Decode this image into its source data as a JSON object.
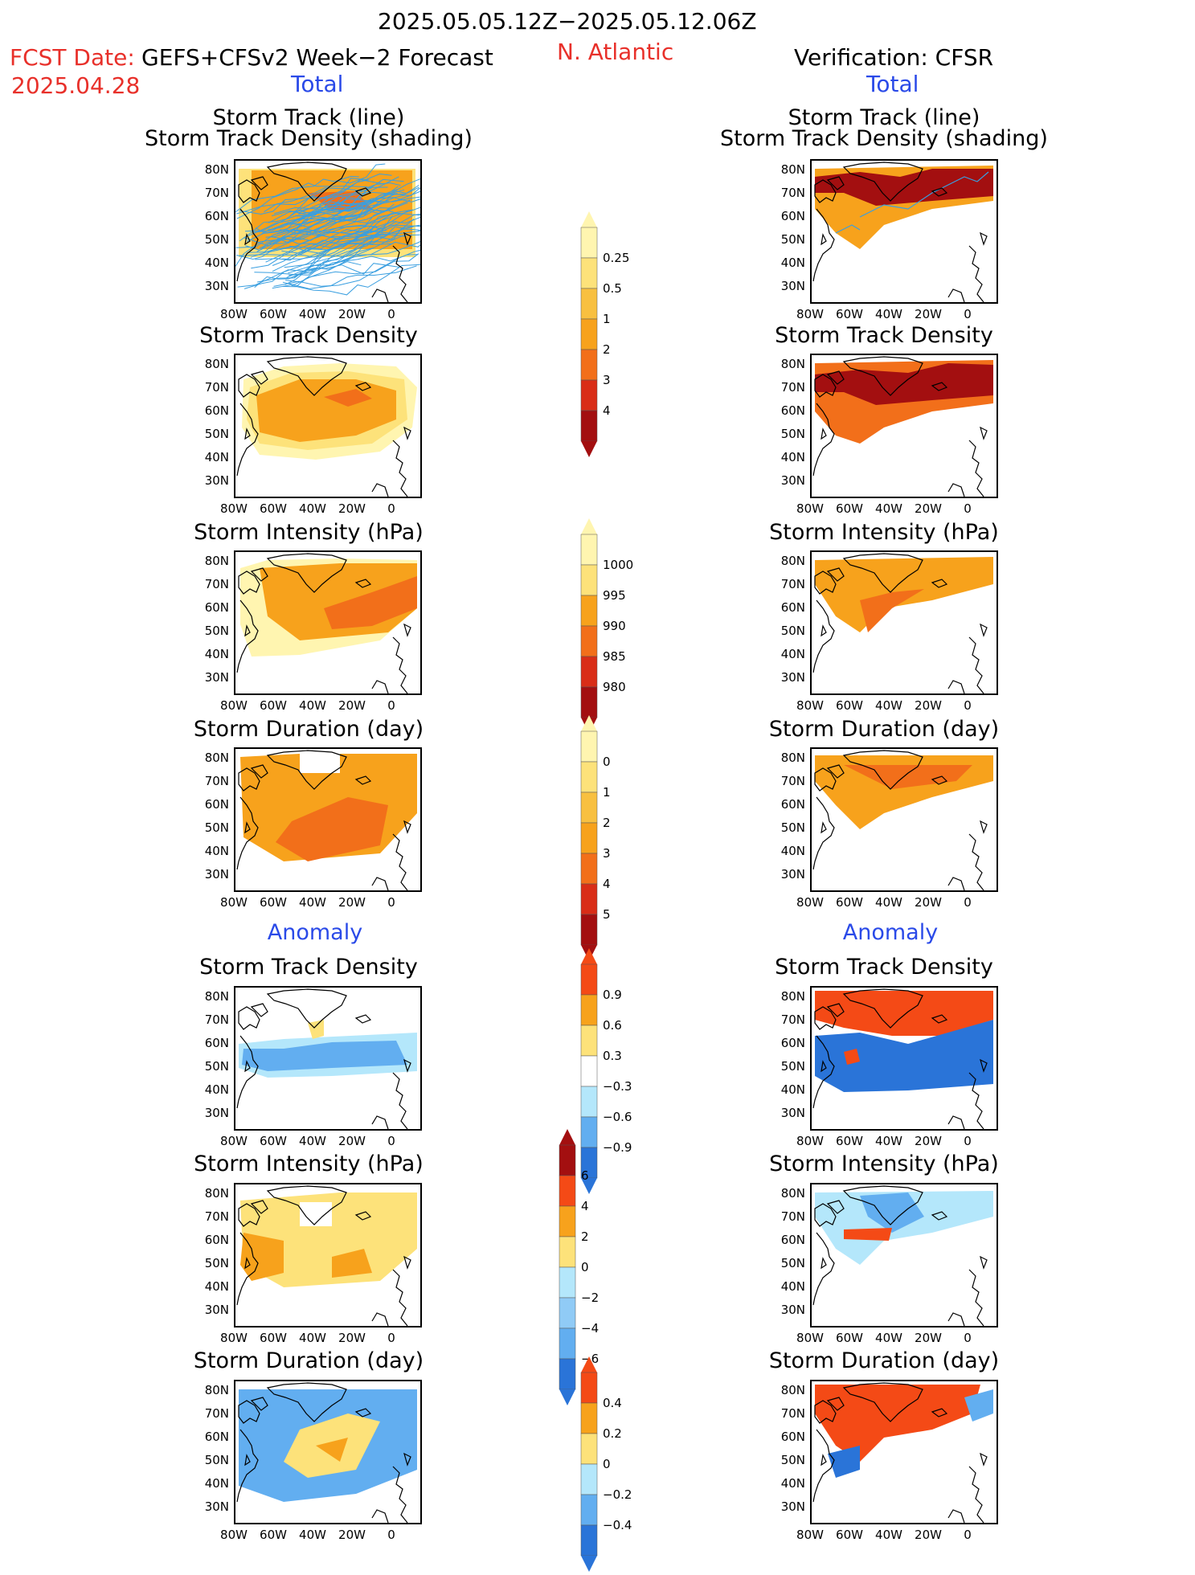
{
  "header": {
    "period": "2025.05.05.12Z−2025.05.12.06Z",
    "fcst_label": "FCST Date:",
    "fcst_date": "2025.04.28",
    "forecast_source": "GEFS+CFSv2 Week−2 Forecast",
    "region": "N. Atlantic",
    "verification": "Verification: CFSR"
  },
  "sections": {
    "total": "Total",
    "anomaly": "Anomaly"
  },
  "panel_titles": {
    "track_line": "Storm Track (line)",
    "track_density_shading": "Storm Track Density (shading)",
    "track_density": "Storm Track Density",
    "intensity": "Storm Intensity (hPa)",
    "duration": "Storm Duration (day)"
  },
  "axes": {
    "lat_labels": [
      "80N",
      "70N",
      "60N",
      "50N",
      "40N",
      "30N"
    ],
    "lon_labels": [
      "80W",
      "60W",
      "40W",
      "20W",
      "0"
    ]
  },
  "colorbars": [
    {
      "id": "density_total",
      "levels": [
        "0.25",
        "0.5",
        "1",
        "2",
        "3",
        "4"
      ],
      "colors": [
        "#fff5b0",
        "#fde27a",
        "#f8c040",
        "#f7a21c",
        "#f26f1a",
        "#d92d17",
        "#a30f10"
      ]
    },
    {
      "id": "intensity_total",
      "levels": [
        "1000",
        "995",
        "990",
        "985",
        "980"
      ],
      "colors": [
        "#fff5b0",
        "#fde27a",
        "#f7a21c",
        "#f26f1a",
        "#d92d17",
        "#a30f10"
      ]
    },
    {
      "id": "duration_total",
      "levels": [
        "0",
        "1",
        "2",
        "3",
        "4",
        "5"
      ],
      "colors": [
        "#fff5b0",
        "#fde27a",
        "#f8c040",
        "#f7a21c",
        "#f26f1a",
        "#d92d17",
        "#a30f10"
      ]
    },
    {
      "id": "density_anom",
      "levels": [
        "0.9",
        "0.6",
        "0.3",
        "−0.3",
        "−0.6",
        "−0.9"
      ],
      "colors": [
        "#f44a16",
        "#f7a21c",
        "#fde27a",
        "#ffffff",
        "#b4e7fb",
        "#62aef0",
        "#2a74d8"
      ]
    },
    {
      "id": "intensity_anom",
      "levels": [
        "6",
        "4",
        "2",
        "0",
        "−2",
        "−4",
        "−6"
      ],
      "colors": [
        "#a30f10",
        "#f44a16",
        "#f7a21c",
        "#fde27a",
        "#b4e7fb",
        "#90cbf6",
        "#62aef0",
        "#2a74d8"
      ]
    },
    {
      "id": "duration_anom",
      "levels": [
        "0.4",
        "0.2",
        "0",
        "−0.2",
        "−0.4"
      ],
      "colors": [
        "#f44a16",
        "#f7a21c",
        "#fde27a",
        "#b4e7fb",
        "#62aef0",
        "#2a74d8"
      ]
    }
  ],
  "colors": {
    "track_line": "#3a9fe0",
    "coast": "#000000",
    "red_text": "#e8302a",
    "blue_text": "#2a4ae8"
  }
}
